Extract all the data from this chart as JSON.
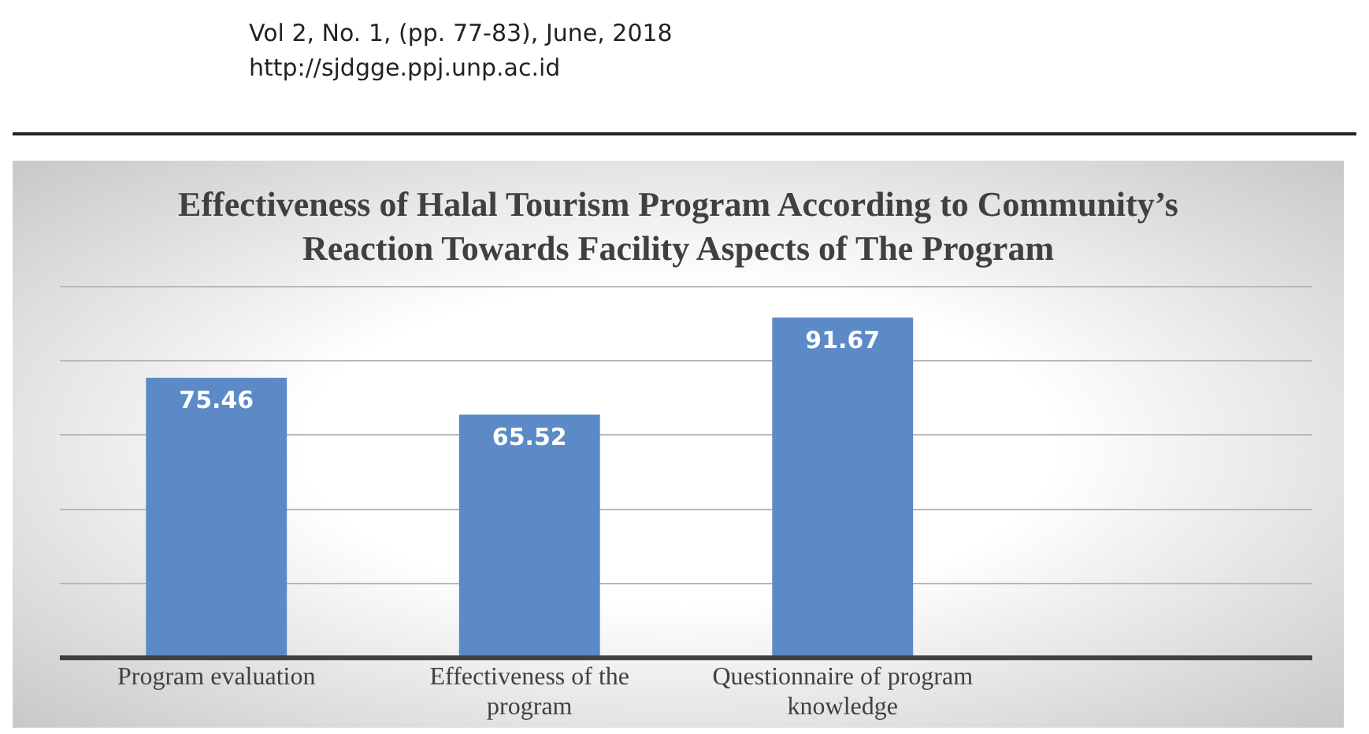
{
  "chart_data": {
    "type": "bar",
    "title": "Effectiveness of Halal Tourism Program According  to Community’s Reaction Towards Facility Aspects of The Program",
    "annotations": [
      "Vol 2, No. 1, (pp. 77-83), June, 2018",
      "http://sjdgge.ppj.unp.ac.id"
    ],
    "categories": [
      "Program evaluation",
      "Effectiveness of the program",
      "Questionnaire of program knowledge",
      null
    ],
    "values": [
      75.46,
      65.52,
      91.67,
      null
    ],
    "color": "#5b8ac6",
    "ylim": [
      0,
      100
    ],
    "yticks": [
      {
        "value": 0,
        "label": null
      },
      {
        "value": 20,
        "label": null
      },
      {
        "value": 40,
        "label": null
      },
      {
        "value": 60,
        "label": null
      },
      {
        "value": 80,
        "label": null
      },
      {
        "value": 100,
        "label": null
      }
    ],
    "tick_labels": "x",
    "grid": "y",
    "data_labels": true,
    "legend": false
  }
}
